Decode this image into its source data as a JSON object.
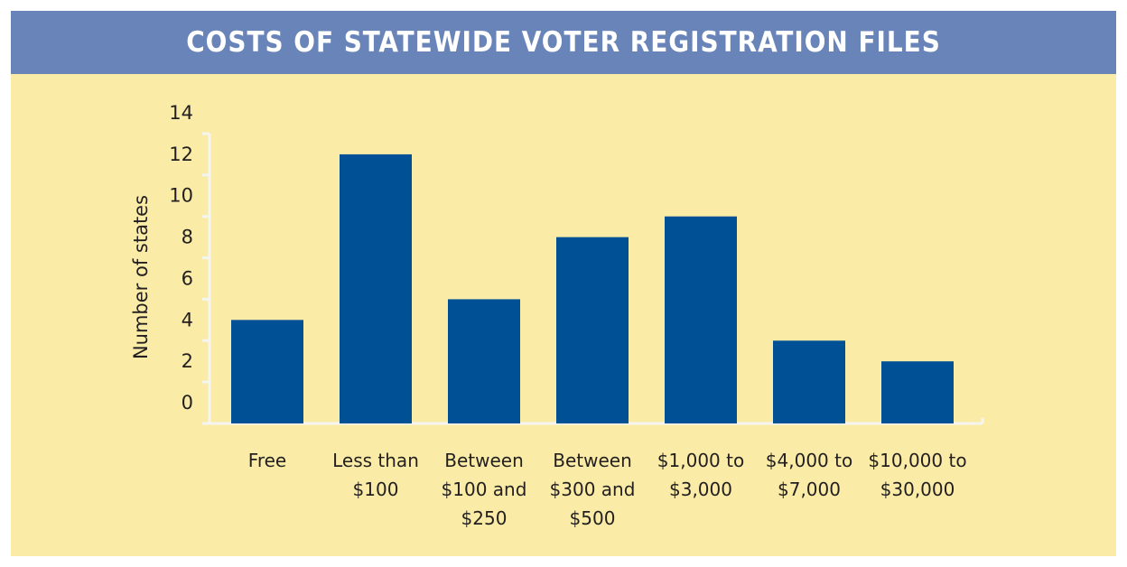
{
  "chart_data": {
    "type": "bar",
    "title": "COSTS OF STATEWIDE VOTER REGISTRATION FILES",
    "y_label": "Number of states",
    "categories": [
      "Free",
      "Less than $100",
      "Between $100 and $250",
      "Between $300 and $500",
      "$1,000 to $3,000",
      "$4,000 to $7,000",
      "$10,000 to $30,000"
    ],
    "values": [
      5,
      13,
      6,
      9,
      10,
      4,
      3
    ],
    "color": "#005096",
    "ylim": [
      0,
      14
    ],
    "yticks": [
      0,
      2,
      4,
      6,
      8,
      10,
      12,
      14
    ],
    "grid": false
  }
}
